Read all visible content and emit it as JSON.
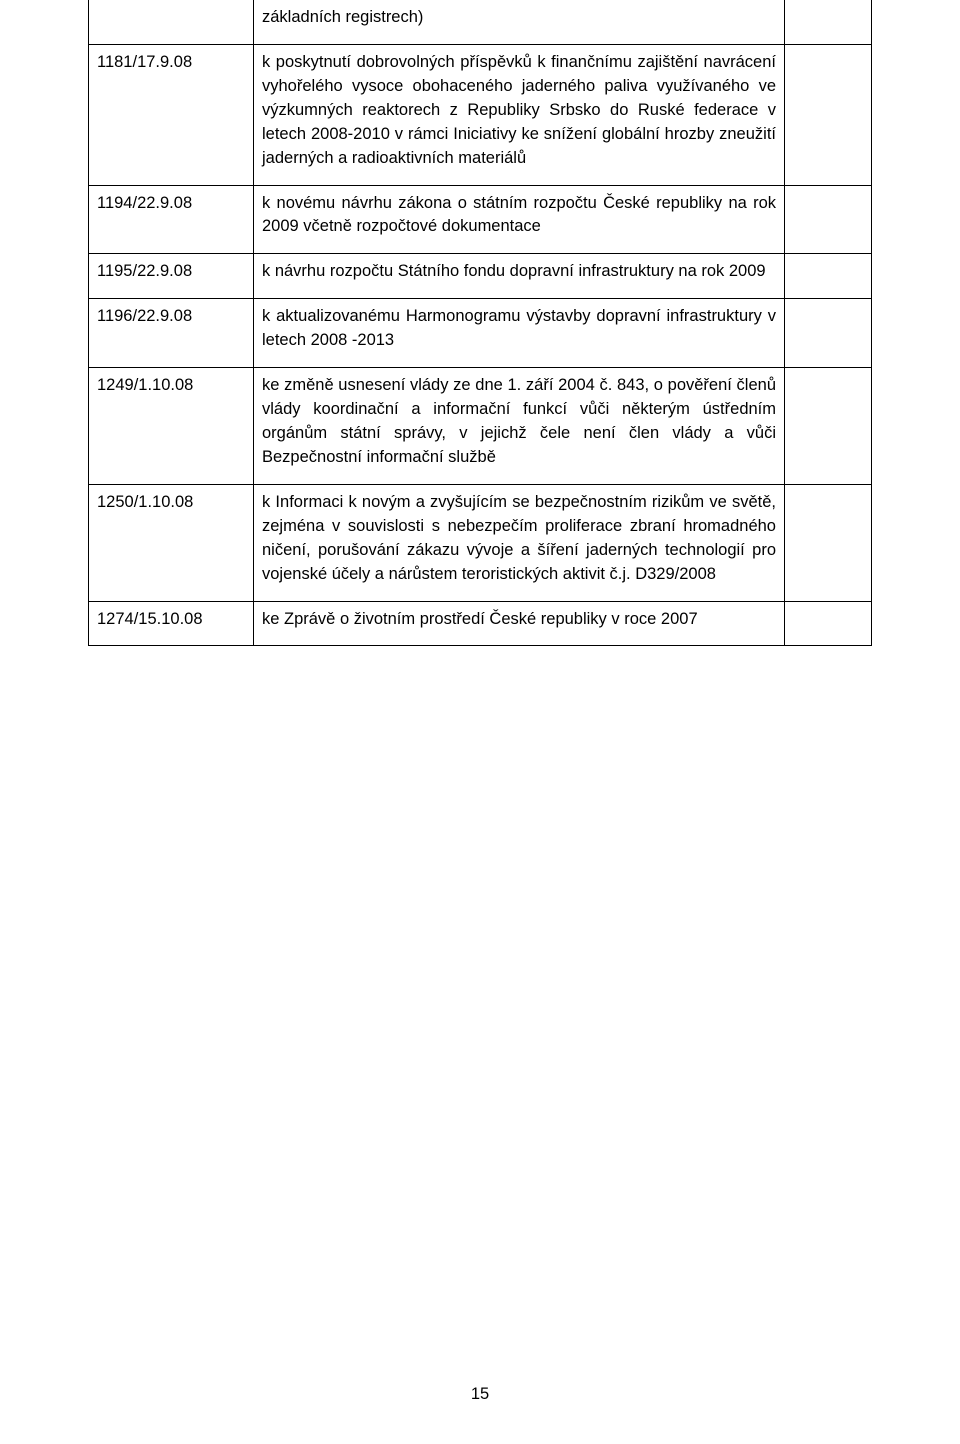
{
  "page_number": "15",
  "rows": [
    {
      "code": "",
      "body": "základních registrech)"
    },
    {
      "code": "1181/17.9.08",
      "body": "k poskytnutí dobrovolných příspěvků k finančnímu zajištění navrácení vyhořelého vysoce obohaceného jaderného paliva využívaného ve výzkumných reaktorech z Republiky Srbsko do Ruské federace v letech 2008-2010 v rámci Iniciativy ke snížení globální hrozby zneužití jaderných a radioaktivních materiálů"
    },
    {
      "code": "1194/22.9.08",
      "body": "k novému návrhu zákona o státním rozpočtu České republiky na rok 2009 včetně rozpočtové dokumentace"
    },
    {
      "code": "1195/22.9.08",
      "body": "k návrhu rozpočtu Státního fondu dopravní infrastruktury na rok 2009"
    },
    {
      "code": "1196/22.9.08",
      "body": "k aktualizovanému Harmonogramu výstavby dopravní infrastruktury v letech 2008 -2013"
    },
    {
      "code": "1249/1.10.08",
      "body": "ke změně usnesení vlády ze dne 1. září 2004 č. 843, o pověření členů vlády koordinační a informační funkcí vůči některým ústředním orgánům státní správy, v jejichž čele není člen vlády a vůči Bezpečnostní informační službě"
    },
    {
      "code": "1250/1.10.08",
      "body": "k Informaci k novým a zvyšujícím se bezpečnostním rizikům ve světě, zejména v souvislosti s nebezpečím proliferace zbraní hromadného ničení, porušování zákazu vývoje a šíření jaderných technologií pro vojenské účely a nárůstem teroristických aktivit č.j. D329/2008"
    },
    {
      "code": "1274/15.10.08",
      "body": "ke Zprávě o životním prostředí České republiky v roce 2007"
    }
  ]
}
